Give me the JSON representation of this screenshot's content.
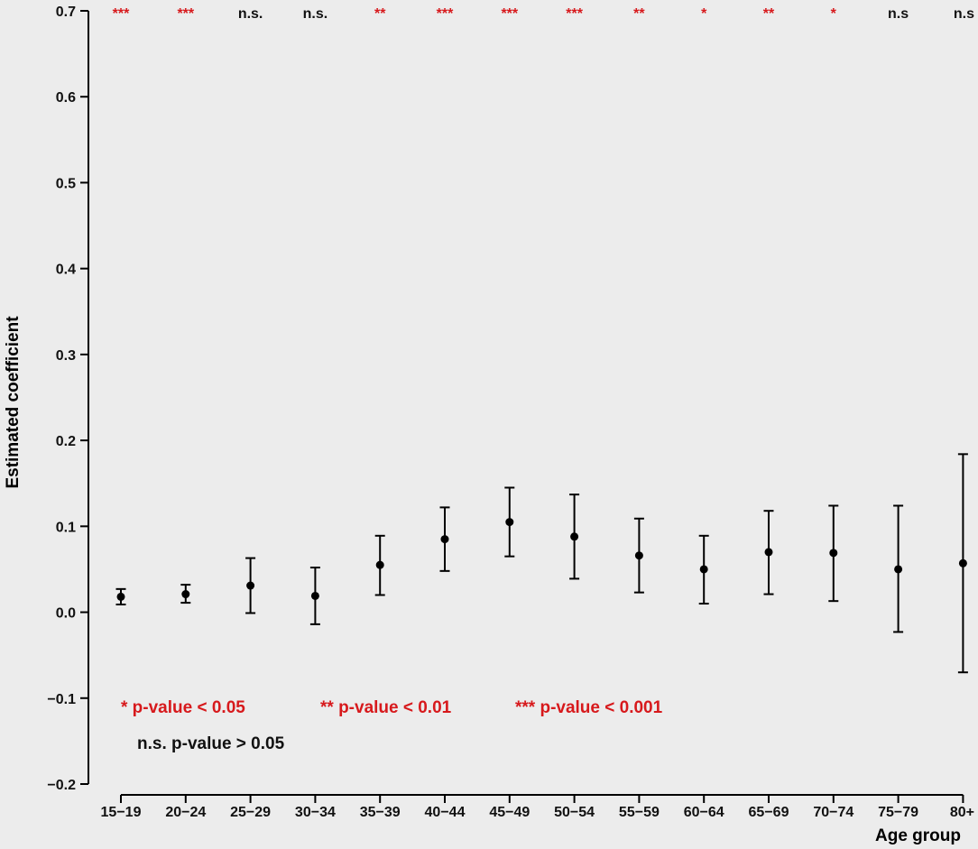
{
  "colors": {
    "panel_bg": "#ececec",
    "significant": "#d7191c",
    "not_significant": "#111111",
    "point": "#000000"
  },
  "chart_data": {
    "type": "scatter",
    "subtype": "point-estimate with error bars",
    "title": "",
    "xlabel": "Age group",
    "ylabel": "Estimated coefficient",
    "ylim": [
      -0.2,
      0.7
    ],
    "yticks": [
      "-0.2",
      "-0.1",
      "0.0",
      "0.1",
      "0.2",
      "0.3",
      "0.4",
      "0.5",
      "0.6",
      "0.7"
    ],
    "grid": false,
    "categories": [
      "15−19",
      "20−24",
      "25−29",
      "30−34",
      "35−39",
      "40−44",
      "45−49",
      "50−54",
      "55−59",
      "60−64",
      "65−69",
      "70−74",
      "75−79",
      "80+"
    ],
    "estimate": [
      0.018,
      0.021,
      0.031,
      0.019,
      0.055,
      0.085,
      0.105,
      0.088,
      0.066,
      0.05,
      0.07,
      0.069,
      0.05,
      0.057
    ],
    "lower": [
      0.009,
      0.011,
      -0.001,
      -0.014,
      0.02,
      0.048,
      0.065,
      0.039,
      0.023,
      0.01,
      0.021,
      0.013,
      -0.023,
      -0.07
    ],
    "upper": [
      0.027,
      0.032,
      0.063,
      0.052,
      0.089,
      0.122,
      0.145,
      0.137,
      0.109,
      0.089,
      0.118,
      0.124,
      0.124,
      0.184
    ],
    "significance": [
      "***",
      "***",
      "n.s.",
      "n.s.",
      "**",
      "***",
      "***",
      "***",
      "**",
      "*",
      "**",
      "*",
      "n.s",
      "n.s"
    ],
    "significant": [
      true,
      true,
      false,
      false,
      true,
      true,
      true,
      true,
      true,
      true,
      true,
      true,
      false,
      false
    ],
    "legend": [
      {
        "text": "* p-value < 0.05",
        "significant": true
      },
      {
        "text": "** p-value < 0.01",
        "significant": true
      },
      {
        "text": "*** p-value < 0.001",
        "significant": true
      },
      {
        "text": "n.s. p-value > 0.05",
        "significant": false
      }
    ],
    "legend_placement": "bottom-left"
  }
}
